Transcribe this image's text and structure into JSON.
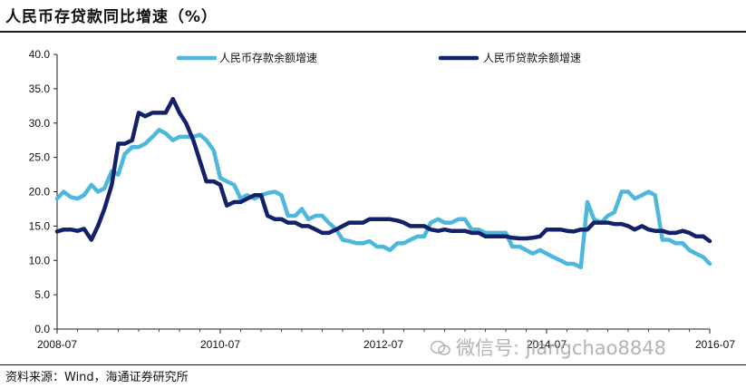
{
  "title": "人民币存贷款同比增速（%）",
  "source": "资料来源：Wind，海通证券研究所",
  "watermark": "微信号: jiangchao8848",
  "colors": {
    "deposit": "#4db8dc",
    "loan": "#13206a",
    "axis": "#222222"
  },
  "chart_data": {
    "type": "line",
    "title": "人民币存贷款同比增速（%）",
    "xlabel": "",
    "ylabel": "",
    "ylim": [
      0,
      40
    ],
    "yticks": [
      "0.0",
      "5.0",
      "10.0",
      "15.0",
      "20.0",
      "25.0",
      "30.0",
      "35.0",
      "40.0"
    ],
    "xlim": [
      2008.5,
      2016.5
    ],
    "xticks": [
      {
        "x": 2008.5,
        "label": "2008-07"
      },
      {
        "x": 2010.5,
        "label": "2010-07"
      },
      {
        "x": 2012.5,
        "label": "2012-07"
      },
      {
        "x": 2014.5,
        "label": "2014-07"
      },
      {
        "x": 2016.5,
        "label": "2016-07"
      }
    ],
    "legend": "top",
    "grid": false,
    "series": [
      {
        "name": "人民币存款余额增速",
        "color": "#4db8dc",
        "points": [
          [
            2008.5,
            19.0
          ],
          [
            2008.58,
            20.0
          ],
          [
            2008.67,
            19.2
          ],
          [
            2008.75,
            19.0
          ],
          [
            2008.83,
            19.5
          ],
          [
            2008.92,
            21.0
          ],
          [
            2009.0,
            20.0
          ],
          [
            2009.08,
            20.5
          ],
          [
            2009.17,
            23.0
          ],
          [
            2009.25,
            22.5
          ],
          [
            2009.33,
            25.5
          ],
          [
            2009.42,
            26.5
          ],
          [
            2009.5,
            26.5
          ],
          [
            2009.58,
            27.0
          ],
          [
            2009.67,
            28.0
          ],
          [
            2009.75,
            29.0
          ],
          [
            2009.83,
            28.5
          ],
          [
            2009.92,
            27.5
          ],
          [
            2010.0,
            28.0
          ],
          [
            2010.08,
            28.0
          ],
          [
            2010.17,
            28.0
          ],
          [
            2010.25,
            28.3
          ],
          [
            2010.33,
            27.5
          ],
          [
            2010.42,
            26.0
          ],
          [
            2010.5,
            22.0
          ],
          [
            2010.58,
            21.5
          ],
          [
            2010.67,
            21.0
          ],
          [
            2010.75,
            19.0
          ],
          [
            2010.83,
            19.5
          ],
          [
            2010.92,
            19.0
          ],
          [
            2011.0,
            19.5
          ],
          [
            2011.08,
            19.8
          ],
          [
            2011.17,
            20.0
          ],
          [
            2011.25,
            19.5
          ],
          [
            2011.33,
            16.5
          ],
          [
            2011.42,
            16.5
          ],
          [
            2011.5,
            17.5
          ],
          [
            2011.58,
            16.0
          ],
          [
            2011.67,
            16.5
          ],
          [
            2011.75,
            16.5
          ],
          [
            2011.83,
            15.5
          ],
          [
            2011.92,
            14.5
          ],
          [
            2012.0,
            13.0
          ],
          [
            2012.08,
            12.8
          ],
          [
            2012.17,
            12.5
          ],
          [
            2012.25,
            12.5
          ],
          [
            2012.33,
            12.8
          ],
          [
            2012.42,
            12.0
          ],
          [
            2012.5,
            12.0
          ],
          [
            2012.58,
            11.5
          ],
          [
            2012.67,
            12.5
          ],
          [
            2012.75,
            12.5
          ],
          [
            2012.83,
            13.0
          ],
          [
            2012.92,
            13.5
          ],
          [
            2013.0,
            13.5
          ],
          [
            2013.08,
            15.5
          ],
          [
            2013.17,
            16.0
          ],
          [
            2013.25,
            15.5
          ],
          [
            2013.33,
            15.5
          ],
          [
            2013.42,
            16.0
          ],
          [
            2013.5,
            16.0
          ],
          [
            2013.58,
            14.5
          ],
          [
            2013.67,
            14.5
          ],
          [
            2013.75,
            14.0
          ],
          [
            2013.83,
            14.0
          ],
          [
            2013.92,
            14.0
          ],
          [
            2014.0,
            14.0
          ],
          [
            2014.08,
            12.0
          ],
          [
            2014.17,
            12.0
          ],
          [
            2014.25,
            11.5
          ],
          [
            2014.33,
            11.0
          ],
          [
            2014.42,
            11.5
          ],
          [
            2014.5,
            11.0
          ],
          [
            2014.58,
            10.5
          ],
          [
            2014.67,
            10.0
          ],
          [
            2014.75,
            9.5
          ],
          [
            2014.83,
            9.5
          ],
          [
            2014.92,
            9.0
          ],
          [
            2015.0,
            18.5
          ],
          [
            2015.08,
            16.0
          ],
          [
            2015.17,
            15.5
          ],
          [
            2015.25,
            16.5
          ],
          [
            2015.33,
            17.0
          ],
          [
            2015.42,
            20.0
          ],
          [
            2015.5,
            20.0
          ],
          [
            2015.58,
            19.0
          ],
          [
            2015.67,
            19.5
          ],
          [
            2015.75,
            20.0
          ],
          [
            2015.83,
            19.5
          ],
          [
            2015.92,
            13.0
          ],
          [
            2016.0,
            13.0
          ],
          [
            2016.08,
            12.5
          ],
          [
            2016.17,
            12.5
          ],
          [
            2016.25,
            11.5
          ],
          [
            2016.33,
            11.0
          ],
          [
            2016.42,
            10.5
          ],
          [
            2016.5,
            9.5
          ]
        ]
      },
      {
        "name": "人民币贷款余额增速",
        "color": "#13206a",
        "points": [
          [
            2008.5,
            14.2
          ],
          [
            2008.58,
            14.5
          ],
          [
            2008.67,
            14.5
          ],
          [
            2008.75,
            14.3
          ],
          [
            2008.83,
            14.6
          ],
          [
            2008.92,
            13.0
          ],
          [
            2009.0,
            15.0
          ],
          [
            2009.08,
            17.5
          ],
          [
            2009.17,
            21.0
          ],
          [
            2009.25,
            27.0
          ],
          [
            2009.33,
            27.0
          ],
          [
            2009.42,
            27.5
          ],
          [
            2009.5,
            31.5
          ],
          [
            2009.58,
            31.0
          ],
          [
            2009.67,
            31.5
          ],
          [
            2009.75,
            31.5
          ],
          [
            2009.83,
            31.5
          ],
          [
            2009.92,
            33.5
          ],
          [
            2010.0,
            31.5
          ],
          [
            2010.08,
            30.0
          ],
          [
            2010.17,
            27.5
          ],
          [
            2010.25,
            24.5
          ],
          [
            2010.33,
            21.5
          ],
          [
            2010.42,
            21.5
          ],
          [
            2010.5,
            21.0
          ],
          [
            2010.58,
            18.0
          ],
          [
            2010.67,
            18.5
          ],
          [
            2010.75,
            18.5
          ],
          [
            2010.83,
            19.0
          ],
          [
            2010.92,
            19.5
          ],
          [
            2011.0,
            19.5
          ],
          [
            2011.08,
            16.5
          ],
          [
            2011.17,
            16.0
          ],
          [
            2011.25,
            16.0
          ],
          [
            2011.33,
            15.5
          ],
          [
            2011.42,
            15.5
          ],
          [
            2011.5,
            15.0
          ],
          [
            2011.58,
            15.0
          ],
          [
            2011.67,
            14.5
          ],
          [
            2011.75,
            14.0
          ],
          [
            2011.83,
            14.0
          ],
          [
            2011.92,
            14.5
          ],
          [
            2012.0,
            15.0
          ],
          [
            2012.08,
            15.5
          ],
          [
            2012.17,
            15.5
          ],
          [
            2012.25,
            15.5
          ],
          [
            2012.33,
            16.0
          ],
          [
            2012.42,
            16.0
          ],
          [
            2012.5,
            16.0
          ],
          [
            2012.58,
            16.0
          ],
          [
            2012.67,
            15.8
          ],
          [
            2012.75,
            15.5
          ],
          [
            2012.83,
            15.0
          ],
          [
            2012.92,
            15.0
          ],
          [
            2013.0,
            15.0
          ],
          [
            2013.08,
            14.5
          ],
          [
            2013.17,
            14.3
          ],
          [
            2013.25,
            14.5
          ],
          [
            2013.33,
            14.3
          ],
          [
            2013.42,
            14.3
          ],
          [
            2013.5,
            14.3
          ],
          [
            2013.58,
            14.0
          ],
          [
            2013.67,
            14.0
          ],
          [
            2013.75,
            13.5
          ],
          [
            2013.83,
            13.5
          ],
          [
            2013.92,
            13.5
          ],
          [
            2014.0,
            13.5
          ],
          [
            2014.08,
            13.3
          ],
          [
            2014.17,
            13.2
          ],
          [
            2014.25,
            13.2
          ],
          [
            2014.33,
            13.3
          ],
          [
            2014.42,
            13.5
          ],
          [
            2014.5,
            14.5
          ],
          [
            2014.58,
            14.5
          ],
          [
            2014.67,
            14.5
          ],
          [
            2014.75,
            14.3
          ],
          [
            2014.83,
            14.2
          ],
          [
            2014.92,
            14.5
          ],
          [
            2015.0,
            14.5
          ],
          [
            2015.08,
            15.5
          ],
          [
            2015.17,
            15.5
          ],
          [
            2015.25,
            15.5
          ],
          [
            2015.33,
            15.3
          ],
          [
            2015.42,
            15.3
          ],
          [
            2015.5,
            15.0
          ],
          [
            2015.58,
            14.5
          ],
          [
            2015.67,
            15.0
          ],
          [
            2015.75,
            14.5
          ],
          [
            2015.83,
            14.3
          ],
          [
            2015.92,
            14.3
          ],
          [
            2016.0,
            14.0
          ],
          [
            2016.08,
            14.0
          ],
          [
            2016.17,
            14.3
          ],
          [
            2016.25,
            14.0
          ],
          [
            2016.33,
            13.5
          ],
          [
            2016.42,
            13.5
          ],
          [
            2016.5,
            12.8
          ]
        ]
      }
    ]
  }
}
